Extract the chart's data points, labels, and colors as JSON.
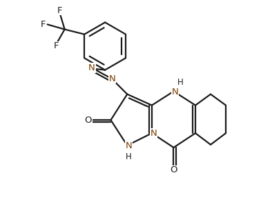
{
  "background_color": "#ffffff",
  "line_color": "#1a1a1a",
  "label_color_N": "#7B3F00",
  "label_color_O": "#1a1a1a",
  "label_color_F": "#1a1a1a",
  "line_width": 1.6,
  "font_size_atom": 9.5,
  "font_size_H": 8.5,
  "xlim": [
    -1.8,
    3.2
  ],
  "ylim": [
    -0.5,
    4.6
  ]
}
